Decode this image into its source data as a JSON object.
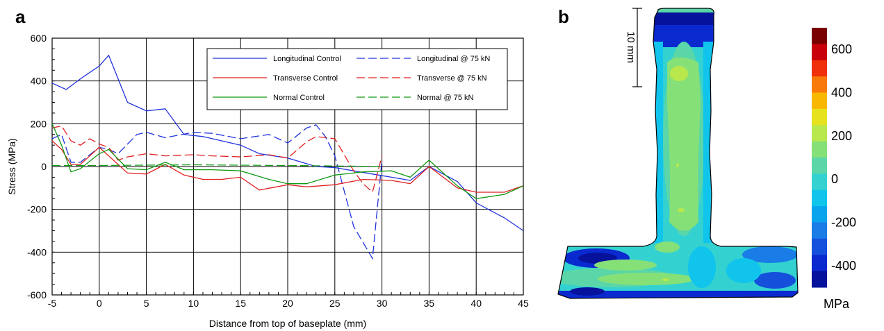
{
  "panel_a": {
    "label": "a"
  },
  "panel_b": {
    "label": "b",
    "scale_bar_label": "10 mm",
    "colorbar_unit": "MPa"
  },
  "chart_data": [
    {
      "type": "line",
      "xlabel": "Distance from top of baseplate (mm)",
      "ylabel": "Stress (MPa)",
      "xlim": [
        -5,
        45
      ],
      "ylim": [
        -600,
        600
      ],
      "xticks": [
        -5,
        0,
        5,
        10,
        15,
        20,
        25,
        30,
        35,
        40,
        45
      ],
      "yticks": [
        -600,
        -400,
        -200,
        0,
        200,
        400,
        600
      ],
      "grid": true,
      "legend_position": "top-right",
      "series": [
        {
          "name": "Longitudinal Control",
          "color": "#2233dd",
          "style": "solid",
          "x": [
            -5,
            -3.5,
            -2,
            0,
            1,
            3,
            5,
            7,
            9,
            11,
            13,
            15,
            17,
            20,
            23,
            25,
            27,
            29,
            31,
            33,
            35,
            38,
            40,
            43,
            45
          ],
          "y": [
            390,
            360,
            410,
            470,
            520,
            300,
            260,
            270,
            150,
            140,
            120,
            100,
            60,
            40,
            0,
            -5,
            -20,
            -35,
            -50,
            -65,
            0,
            -70,
            -170,
            -240,
            -300
          ]
        },
        {
          "name": "Longitudinal @ 75 kN",
          "color": "#2233dd",
          "style": "dash",
          "x": [
            -5,
            -4,
            -3,
            -2,
            0,
            1,
            2,
            4,
            5,
            7,
            10,
            12,
            15,
            18,
            20,
            22,
            23,
            24,
            25,
            27,
            29,
            30
          ],
          "y": [
            130,
            150,
            20,
            20,
            90,
            80,
            60,
            150,
            160,
            135,
            160,
            155,
            130,
            150,
            110,
            180,
            195,
            140,
            50,
            -280,
            -430,
            30
          ]
        },
        {
          "name": "Transverse Control",
          "color": "#e02020",
          "style": "solid",
          "x": [
            -5,
            -4,
            -3,
            -2,
            0,
            2,
            3,
            5,
            7,
            9,
            11,
            13,
            15,
            17,
            20,
            22,
            25,
            28,
            31,
            33,
            35,
            38,
            40,
            43,
            45
          ],
          "y": [
            120,
            80,
            10,
            10,
            90,
            10,
            -30,
            -35,
            10,
            -40,
            -60,
            -60,
            -50,
            -110,
            -85,
            -95,
            -85,
            -60,
            -65,
            -80,
            0,
            -100,
            -120,
            -120,
            -90
          ]
        },
        {
          "name": "Transverse @ 75 kN",
          "color": "#e02020",
          "style": "dash",
          "x": [
            -5,
            -4,
            -3,
            -2,
            -1,
            0,
            1,
            2,
            3,
            5,
            7,
            10,
            12,
            15,
            18,
            20,
            22,
            23,
            25,
            27,
            28,
            29,
            30
          ],
          "y": [
            180,
            190,
            120,
            100,
            130,
            105,
            90,
            30,
            45,
            60,
            50,
            55,
            50,
            45,
            55,
            40,
            115,
            140,
            130,
            -20,
            -80,
            -120,
            50
          ]
        },
        {
          "name": "Normal Control",
          "color": "#119911",
          "style": "solid",
          "x": [
            -5,
            -4,
            -3,
            -2,
            0,
            1,
            3,
            5,
            7,
            9,
            12,
            15,
            18,
            20,
            22,
            25,
            28,
            31,
            33,
            35,
            38,
            40,
            43,
            45
          ],
          "y": [
            200,
            100,
            -25,
            -10,
            60,
            80,
            -10,
            -15,
            20,
            -15,
            -15,
            -20,
            -60,
            -80,
            -80,
            -40,
            -25,
            -20,
            -50,
            30,
            -90,
            -150,
            -130,
            -90
          ]
        },
        {
          "name": "Normal @ 75 kN",
          "color": "#119911",
          "style": "dash",
          "x": [
            -5,
            0,
            10,
            20,
            30
          ],
          "y": [
            5,
            5,
            8,
            5,
            0
          ]
        }
      ]
    },
    {
      "type": "heatmap",
      "colorbar": {
        "ticks": [
          600,
          400,
          200,
          0,
          -200,
          -400
        ],
        "range": [
          -500,
          700
        ],
        "colors": [
          "#7a0000",
          "#c8000a",
          "#f0300a",
          "#f87a0a",
          "#f9b800",
          "#e6e21e",
          "#b8e84c",
          "#86e078",
          "#5ad6a8",
          "#33d2d0",
          "#10c4ec",
          "#0aa4ec",
          "#1a7ce6",
          "#1450dc",
          "#0a2ad0",
          "#06129c"
        ]
      }
    }
  ]
}
